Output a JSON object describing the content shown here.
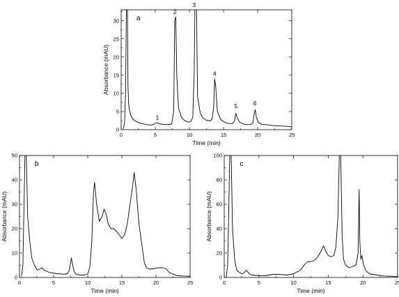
{
  "chart_data": [
    {
      "type": "line",
      "panel_label": "a",
      "xlabel": "Time (min)",
      "ylabel": "Absorbance (mAU)",
      "xlim": [
        0,
        25
      ],
      "ylim": [
        0,
        33
      ],
      "xticks": [
        0,
        5,
        10,
        15,
        20,
        25
      ],
      "yticks": [
        0,
        5,
        10,
        15,
        20,
        25,
        30
      ],
      "grid": false,
      "series": [
        {
          "x": [
            0.3,
            0.5,
            0.65,
            0.8,
            0.9,
            1.0,
            1.1,
            1.2,
            1.4,
            1.7,
            2.0,
            2.5,
            3.0,
            3.5,
            4.0,
            4.5,
            4.8,
            5.0,
            5.2,
            5.4,
            5.7,
            6.0,
            6.5,
            7.0,
            7.4,
            7.7,
            7.85,
            8.0,
            8.15,
            8.4,
            8.8,
            9.3,
            9.8,
            10.2,
            10.5,
            10.7,
            10.85,
            11.0,
            11.2,
            11.6,
            12.0,
            12.5,
            13.0,
            13.3,
            13.55,
            13.7,
            13.85,
            14.1,
            14.6,
            15.2,
            15.8,
            16.3,
            16.6,
            16.8,
            17.0,
            17.3,
            17.8,
            18.4,
            19.0,
            19.3,
            19.5,
            19.65,
            19.8,
            20.1,
            20.6,
            21.5,
            22.5,
            23.5,
            24.5,
            25.0
          ],
          "values": [
            0.2,
            2,
            10,
            40,
            40,
            12,
            7,
            5.5,
            4,
            3,
            2.5,
            2,
            1.7,
            1.5,
            1.3,
            1.3,
            1.5,
            1.8,
            1.9,
            1.8,
            1.6,
            1.5,
            1.4,
            1.4,
            1.6,
            5,
            30,
            31,
            15,
            6,
            3.5,
            2.5,
            2.1,
            2.2,
            3.5,
            16,
            40,
            40,
            9,
            4.5,
            3.2,
            2.6,
            2.4,
            2.8,
            6,
            14,
            12,
            5,
            2.8,
            2,
            1.7,
            1.7,
            2.4,
            4.5,
            3.3,
            2.2,
            1.6,
            1.4,
            1.4,
            1.8,
            4.5,
            5.5,
            3.5,
            2,
            1.5,
            1.3,
            1.1,
            1.0,
            0.9,
            0.8
          ]
        }
      ],
      "annotations": [
        {
          "text": "1",
          "x": 5.3,
          "y": 2.4
        },
        {
          "text": "2",
          "x": 7.9,
          "y": 31.5
        },
        {
          "text": "3",
          "x": 10.7,
          "y": 33.5
        },
        {
          "text": "4",
          "x": 13.7,
          "y": 14.5
        },
        {
          "text": "5",
          "x": 16.8,
          "y": 5.6
        },
        {
          "text": "6",
          "x": 19.6,
          "y": 6.3
        }
      ]
    },
    {
      "type": "line",
      "panel_label": "b",
      "xlabel": "Time (min)",
      "ylabel": "Absorbance (mAU)",
      "xlim": [
        0,
        25
      ],
      "ylim": [
        0,
        50
      ],
      "xticks": [
        0,
        5,
        10,
        15,
        20,
        25
      ],
      "yticks": [
        0,
        10,
        20,
        30,
        40,
        50
      ],
      "grid": false,
      "series": [
        {
          "x": [
            0.3,
            0.5,
            0.8,
            1.0,
            1.2,
            1.5,
            1.8,
            2.2,
            2.6,
            3.0,
            3.3,
            3.6,
            4.0,
            4.5,
            5.0,
            5.5,
            6.0,
            6.5,
            7.0,
            7.3,
            7.6,
            7.8,
            8.0,
            8.2,
            8.5,
            9.0,
            9.5,
            10.0,
            10.3,
            10.6,
            10.85,
            11.0,
            11.3,
            11.7,
            12.1,
            12.4,
            12.7,
            13.0,
            13.4,
            13.8,
            14.2,
            14.6,
            15.0,
            15.4,
            15.8,
            16.2,
            16.6,
            16.8,
            17.1,
            17.5,
            18.0,
            18.3,
            18.6,
            19.0,
            19.5,
            20.0,
            20.5,
            21.0,
            21.5,
            22.0,
            23.0,
            24.0,
            25.0
          ],
          "values": [
            0.5,
            5,
            50,
            50,
            25,
            15,
            8,
            5,
            3,
            3.5,
            4,
            3,
            2.5,
            2,
            1.8,
            1.5,
            1.5,
            1.3,
            1.5,
            3,
            8,
            5,
            2.5,
            1.5,
            1.2,
            1,
            1,
            1.5,
            4,
            15,
            35,
            39,
            30,
            23,
            25,
            28,
            26,
            22,
            20,
            20,
            19,
            17.5,
            16,
            17.5,
            22,
            30,
            38,
            43,
            36,
            22,
            12,
            6,
            4,
            3.5,
            3.5,
            3.8,
            4,
            4,
            3.5,
            2,
            0.8,
            0.6,
            0.5
          ]
        }
      ]
    },
    {
      "type": "line",
      "panel_label": "c",
      "xlabel": "Time (min)",
      "ylabel": "Absorbance (mAU)",
      "xlim": [
        0,
        25
      ],
      "ylim": [
        0,
        100
      ],
      "xticks": [
        0,
        5,
        10,
        15,
        20,
        25
      ],
      "yticks": [
        0,
        20,
        40,
        60,
        80,
        100
      ],
      "grid": false,
      "series": [
        {
          "x": [
            0.3,
            0.5,
            0.8,
            1.0,
            1.2,
            1.5,
            1.8,
            2.2,
            2.6,
            2.9,
            3.2,
            3.6,
            4.0,
            5.0,
            6.0,
            7.0,
            8.0,
            9.0,
            10.0,
            11.0,
            11.5,
            12.0,
            12.5,
            13.0,
            13.5,
            14.0,
            14.3,
            14.6,
            15.0,
            15.4,
            15.8,
            16.1,
            16.4,
            16.6,
            16.8,
            17.0,
            17.2,
            17.5,
            18.0,
            18.5,
            19.0,
            19.3,
            19.45,
            19.55,
            19.7,
            19.85,
            20.1,
            20.5,
            21.0,
            22.0,
            23.0,
            24.0,
            25.0
          ],
          "values": [
            0.5,
            10,
            100,
            100,
            40,
            15,
            6,
            4,
            3,
            4,
            6,
            3,
            2,
            1.5,
            1.5,
            2.5,
            2.5,
            2,
            3,
            6,
            10,
            13,
            13,
            14,
            17,
            22,
            26,
            22,
            18,
            17,
            18,
            25,
            50,
            100,
            100,
            35,
            15,
            10,
            8,
            9,
            10,
            20,
            72,
            30,
            15,
            18,
            10,
            5,
            3,
            2,
            1.2,
            1,
            0.8
          ]
        }
      ]
    }
  ]
}
